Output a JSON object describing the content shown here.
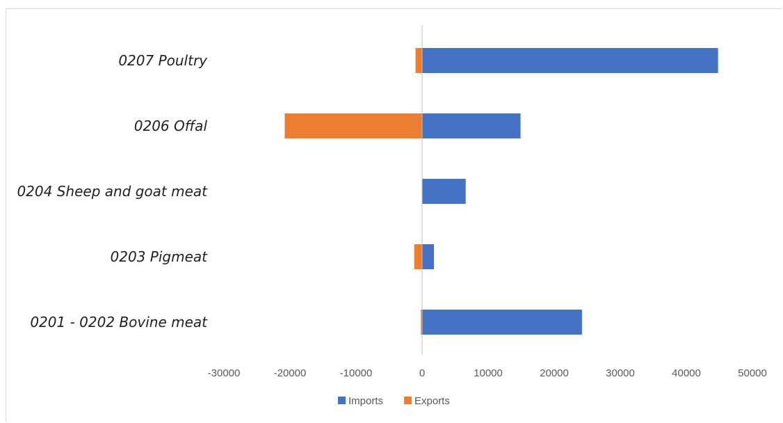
{
  "chart_data": {
    "type": "bar",
    "orientation": "horizontal",
    "stacked": true,
    "categories": [
      "0207 Poultry",
      "0206 Offal",
      "0204 Sheep and goat meat",
      "0203 Pigmeat",
      "0201 - 0202 Bovine meat"
    ],
    "series": [
      {
        "name": "Imports",
        "color": "#4472c4",
        "values": [
          44800,
          14900,
          6600,
          1800,
          24200
        ]
      },
      {
        "name": "Exports",
        "color": "#ed7d31",
        "values": [
          -1000,
          -20800,
          0,
          -1200,
          -200
        ]
      }
    ],
    "xlim": [
      -30000,
      50000
    ],
    "xticks": [
      "-30000",
      "-20000",
      "-10000",
      "0",
      "10000",
      "20000",
      "30000",
      "40000",
      "50000"
    ],
    "title": "",
    "xlabel": "",
    "ylabel": "",
    "grid": false,
    "legend_position": "bottom"
  }
}
